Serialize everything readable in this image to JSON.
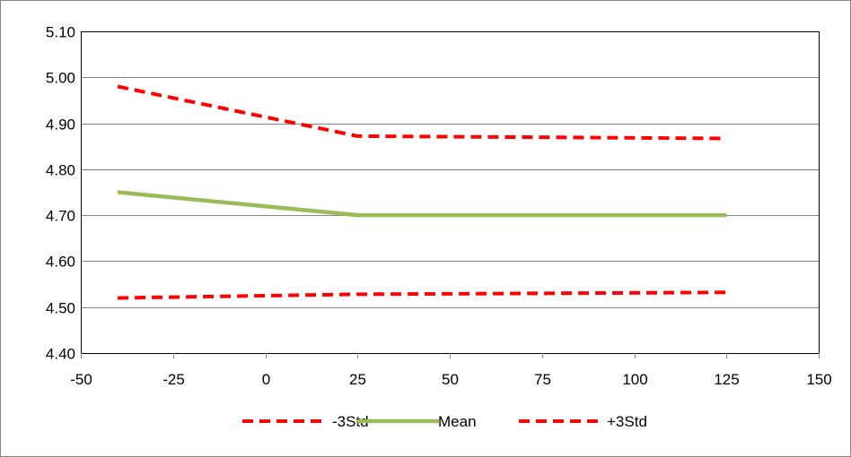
{
  "chart_data": {
    "type": "line",
    "title": "",
    "xlabel": "",
    "ylabel": "",
    "xlim": [
      -50,
      150
    ],
    "ylim": [
      4.4,
      5.1
    ],
    "x_ticks": [
      -50,
      -25,
      0,
      25,
      50,
      75,
      100,
      125,
      150
    ],
    "y_ticks": [
      4.4,
      4.5,
      4.6,
      4.7,
      4.8,
      4.9,
      5.0,
      5.1
    ],
    "x_tick_labels": [
      "-50",
      "-25",
      "0",
      "25",
      "50",
      "75",
      "100",
      "125",
      "150"
    ],
    "y_tick_labels": [
      "4.40",
      "4.50",
      "4.60",
      "4.70",
      "4.80",
      "4.90",
      "5.00",
      "5.10"
    ],
    "grid": true,
    "legend_position": "bottom",
    "series": [
      {
        "name": "-3Std",
        "x": [
          -40,
          25,
          125
        ],
        "values": [
          4.52,
          4.528,
          4.532
        ],
        "color": "#ff0000",
        "style": "dashed"
      },
      {
        "name": "Mean",
        "x": [
          -40,
          25,
          125
        ],
        "values": [
          4.75,
          4.7,
          4.7
        ],
        "color": "#9bbb59",
        "style": "solid"
      },
      {
        "name": "+3Std",
        "x": [
          -40,
          25,
          125
        ],
        "values": [
          4.98,
          4.872,
          4.867
        ],
        "color": "#ff0000",
        "style": "dashed"
      }
    ]
  }
}
